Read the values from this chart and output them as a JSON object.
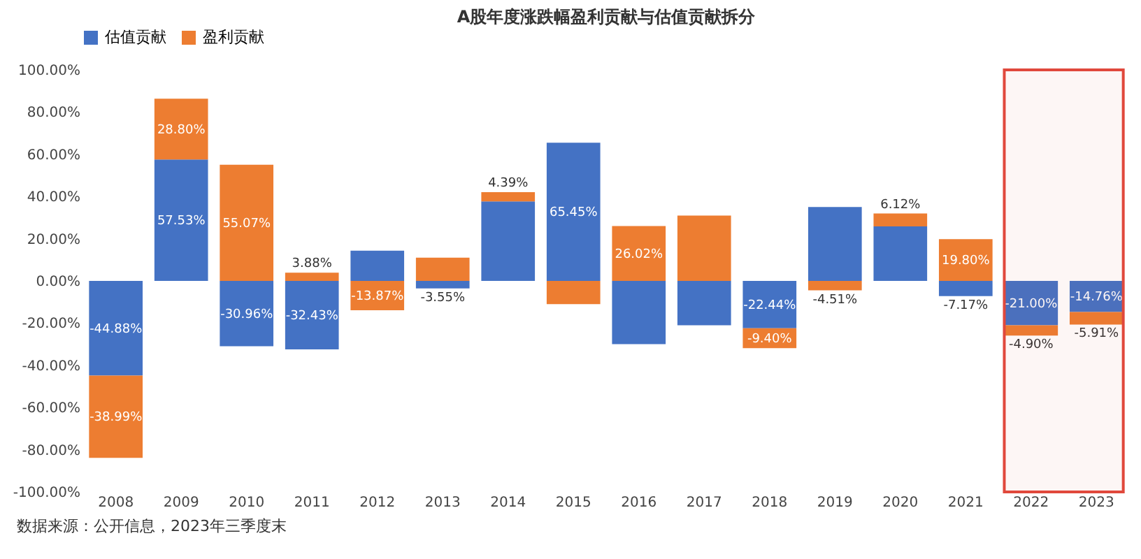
{
  "chart_data": {
    "type": "bar",
    "title": "A股年度涨跌幅盈利贡献与估值贡献拆分",
    "categories": [
      "2008",
      "2009",
      "2010",
      "2011",
      "2012",
      "2013",
      "2014",
      "2015",
      "2016",
      "2017",
      "2018",
      "2019",
      "2020",
      "2021",
      "2022",
      "2023"
    ],
    "stacked": true,
    "series": [
      {
        "name": "估值贡献",
        "color": "#4472c4",
        "values": [
          -44.88,
          57.53,
          -30.96,
          -32.43,
          14.3,
          -3.55,
          37.7,
          65.45,
          -30,
          -21,
          -22.44,
          35,
          25.8,
          -7.17,
          -21.0,
          -14.76
        ],
        "value_labels": [
          "-44.88%",
          "57.53%",
          "-30.96%",
          "-32.43%",
          null,
          "-3.55%",
          null,
          "65.45%",
          null,
          null,
          "-22.44%",
          null,
          null,
          "-7.17%",
          "-21.00%",
          "-14.76%"
        ]
      },
      {
        "name": "盈利贡献",
        "color": "#ed7d31",
        "values": [
          -38.99,
          28.8,
          55.07,
          3.88,
          -13.87,
          11,
          4.39,
          -11,
          26.02,
          31,
          -9.4,
          -4.51,
          6.12,
          19.8,
          -4.9,
          -5.91
        ],
        "value_labels": [
          "-38.99%",
          "28.80%",
          "55.07%",
          "3.88%",
          "-13.87%",
          null,
          "4.39%",
          null,
          "26.02%",
          null,
          "-9.40%",
          "-4.51%",
          "6.12%",
          "19.80%",
          "-4.90%",
          "-5.91%"
        ]
      }
    ],
    "ylim": [
      -100,
      100
    ],
    "yticks": [
      {
        "value": -100,
        "label": "-100.00%"
      },
      {
        "value": -80,
        "label": "-80.00%"
      },
      {
        "value": -60,
        "label": "-60.00%"
      },
      {
        "value": -40,
        "label": "-40.00%"
      },
      {
        "value": -20,
        "label": "-20.00%"
      },
      {
        "value": 0,
        "label": "0.00%"
      },
      {
        "value": 20,
        "label": "20.00%"
      },
      {
        "value": 40,
        "label": "40.00%"
      },
      {
        "value": 60,
        "label": "60.00%"
      },
      {
        "value": 80,
        "label": "80.00%"
      },
      {
        "value": 100,
        "label": "100.00%"
      }
    ],
    "grid": false,
    "legend": "top",
    "bands": [
      {
        "axis": "x",
        "from": "2022",
        "to": "2023",
        "color": "#e0483c"
      }
    ],
    "annotations": [
      "数据来源：公开信息，2023年三季度末"
    ]
  }
}
